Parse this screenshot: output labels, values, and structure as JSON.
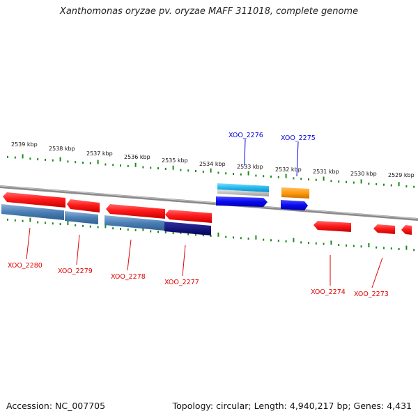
{
  "title": "Xanthomonas oryzae pv. oryzae MAFF 311018, complete genome",
  "footer": {
    "accession": "Accession: NC_007705",
    "stats": "Topology: circular; Length: 4,940,217 bp; Genes: 4,431"
  },
  "scale_labels": [
    "2539 kbp",
    "2538 kbp",
    "2537 kbp",
    "2536 kbp",
    "2535 kbp",
    "2534 kbp",
    "2533 kbp",
    "2532 kbp",
    "2531 kbp",
    "2530 kbp",
    "2529 kbp"
  ],
  "colors": {
    "backbone": "#8a8a8a",
    "ticks": "#1a8a1a",
    "label_red": "#e00000",
    "label_blue": "#0000e0"
  },
  "genes": [
    {
      "name": "XOO_2280",
      "label_color": "red"
    },
    {
      "name": "XOO_2279",
      "label_color": "red"
    },
    {
      "name": "XOO_2278",
      "label_color": "red"
    },
    {
      "name": "XOO_2277",
      "label_color": "red"
    },
    {
      "name": "XOO_2276",
      "label_color": "blue"
    },
    {
      "name": "XOO_2275",
      "label_color": "blue"
    },
    {
      "name": "XOO_2274",
      "label_color": "red"
    },
    {
      "name": "XOO_2273",
      "label_color": "red"
    }
  ]
}
